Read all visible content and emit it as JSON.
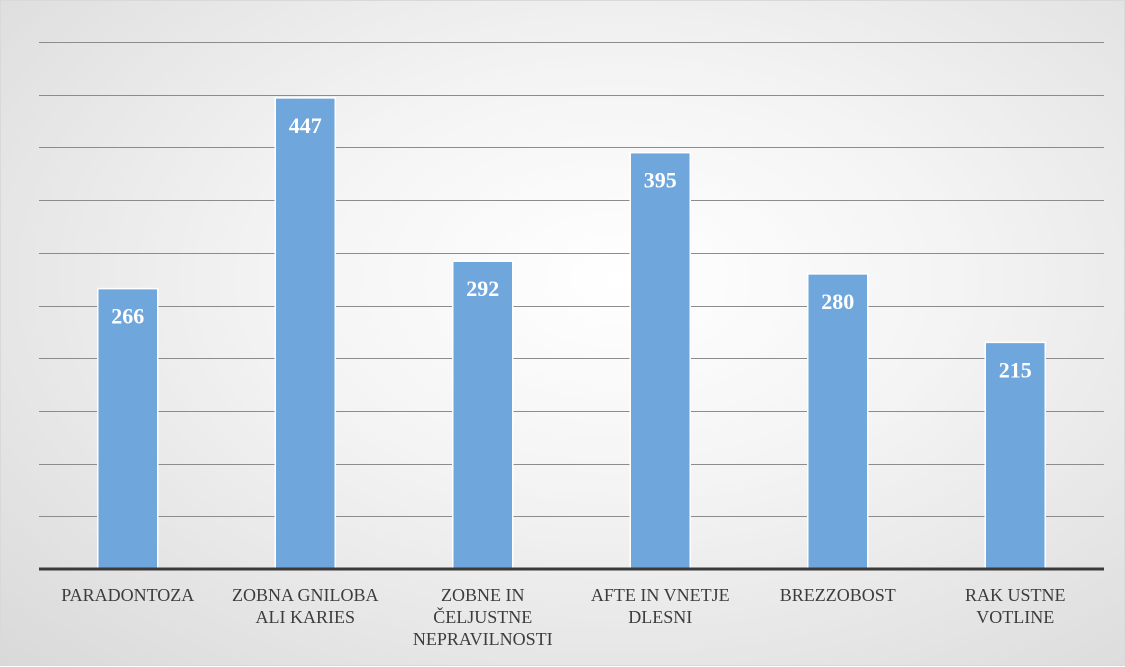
{
  "chart_data": {
    "type": "bar",
    "title": "",
    "xlabel": "",
    "ylabel": "",
    "categories": [
      "PARADONTOZA",
      "ZOBNA GNILOBA ALI KARIES",
      "ZOBNE IN ČELJUSTNE NEPRAVILNOSTI",
      "AFTE IN VNETJE DLESNI",
      "BREZZOBOST",
      "RAK USTNE VOTLINE"
    ],
    "category_lines": [
      [
        "PARADONTOZA"
      ],
      [
        "ZOBNA GNILOBA",
        "ALI KARIES"
      ],
      [
        "ZOBNE IN",
        "ČELJUSTNE",
        "NEPRAVILNOSTI"
      ],
      [
        "AFTE IN VNETJE",
        "DLESNI"
      ],
      [
        "BREZZOBOST"
      ],
      [
        "RAK USTNE",
        "VOTLINE"
      ]
    ],
    "series": [
      {
        "values": [
          266,
          447,
          292,
          395,
          280,
          215
        ],
        "color": "#6fa6db"
      }
    ],
    "ylim": [
      0,
      500
    ],
    "grid_step": 50,
    "grid": true,
    "show_y_tick_labels": false,
    "data_labels": true
  }
}
